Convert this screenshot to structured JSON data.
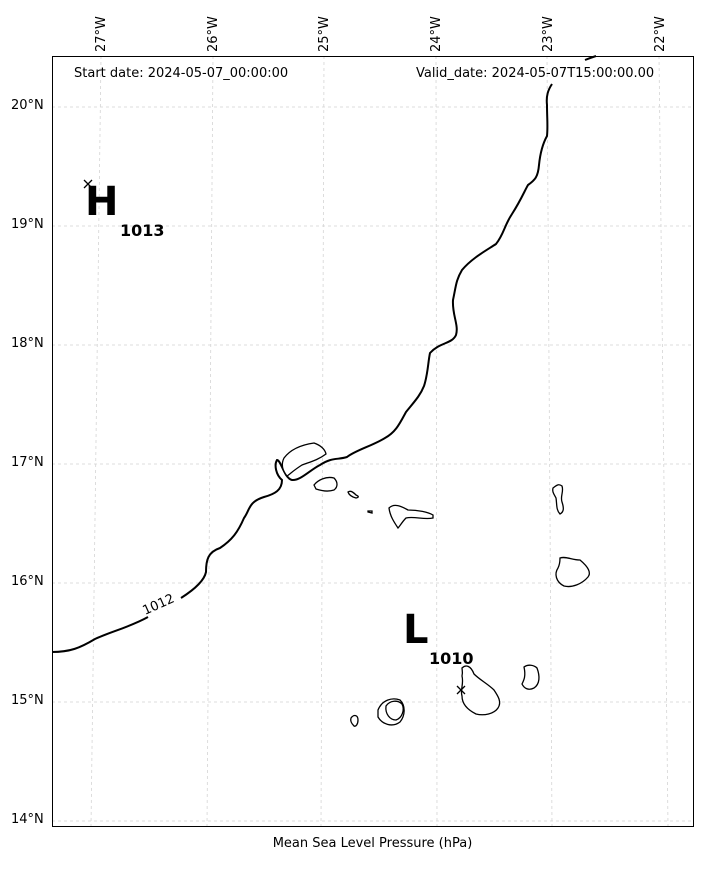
{
  "header": {
    "start_date": "Start date: 2024-05-07_00:00:00",
    "valid_date": "Valid_date: 2024-05-07T15:00:00.00"
  },
  "axes": {
    "longitude_ticks": [
      "27°W",
      "26°W",
      "25°W",
      "24°W",
      "23°W",
      "22°W"
    ],
    "latitude_ticks": [
      "20°N",
      "19°N",
      "18°N",
      "17°N",
      "16°N",
      "15°N",
      "14°N"
    ],
    "caption": "Mean Sea Level Pressure (hPa)",
    "gridlines": true
  },
  "pressure_systems": [
    {
      "type": "high",
      "letter": "H",
      "value": "1013"
    },
    {
      "type": "low",
      "letter": "L",
      "value": "1010"
    }
  ],
  "isobars": [
    {
      "label": "1012"
    }
  ],
  "chart_data": {
    "type": "map",
    "field": "Mean Sea Level Pressure (hPa)",
    "region": "Cape Verde Islands",
    "lon_range": [
      -27.3,
      -21.7
    ],
    "lat_range": [
      14.0,
      20.4
    ],
    "high": {
      "lon": -27.0,
      "lat": 19.35,
      "value": 1013
    },
    "low": {
      "lon": -23.75,
      "lat": 15.08,
      "value": 1010
    },
    "contour_levels": [
      1012
    ]
  },
  "colors": {
    "coastline": "#000000",
    "isobar": "#000000",
    "gridline": "#cccccc",
    "background": "#ffffff"
  }
}
